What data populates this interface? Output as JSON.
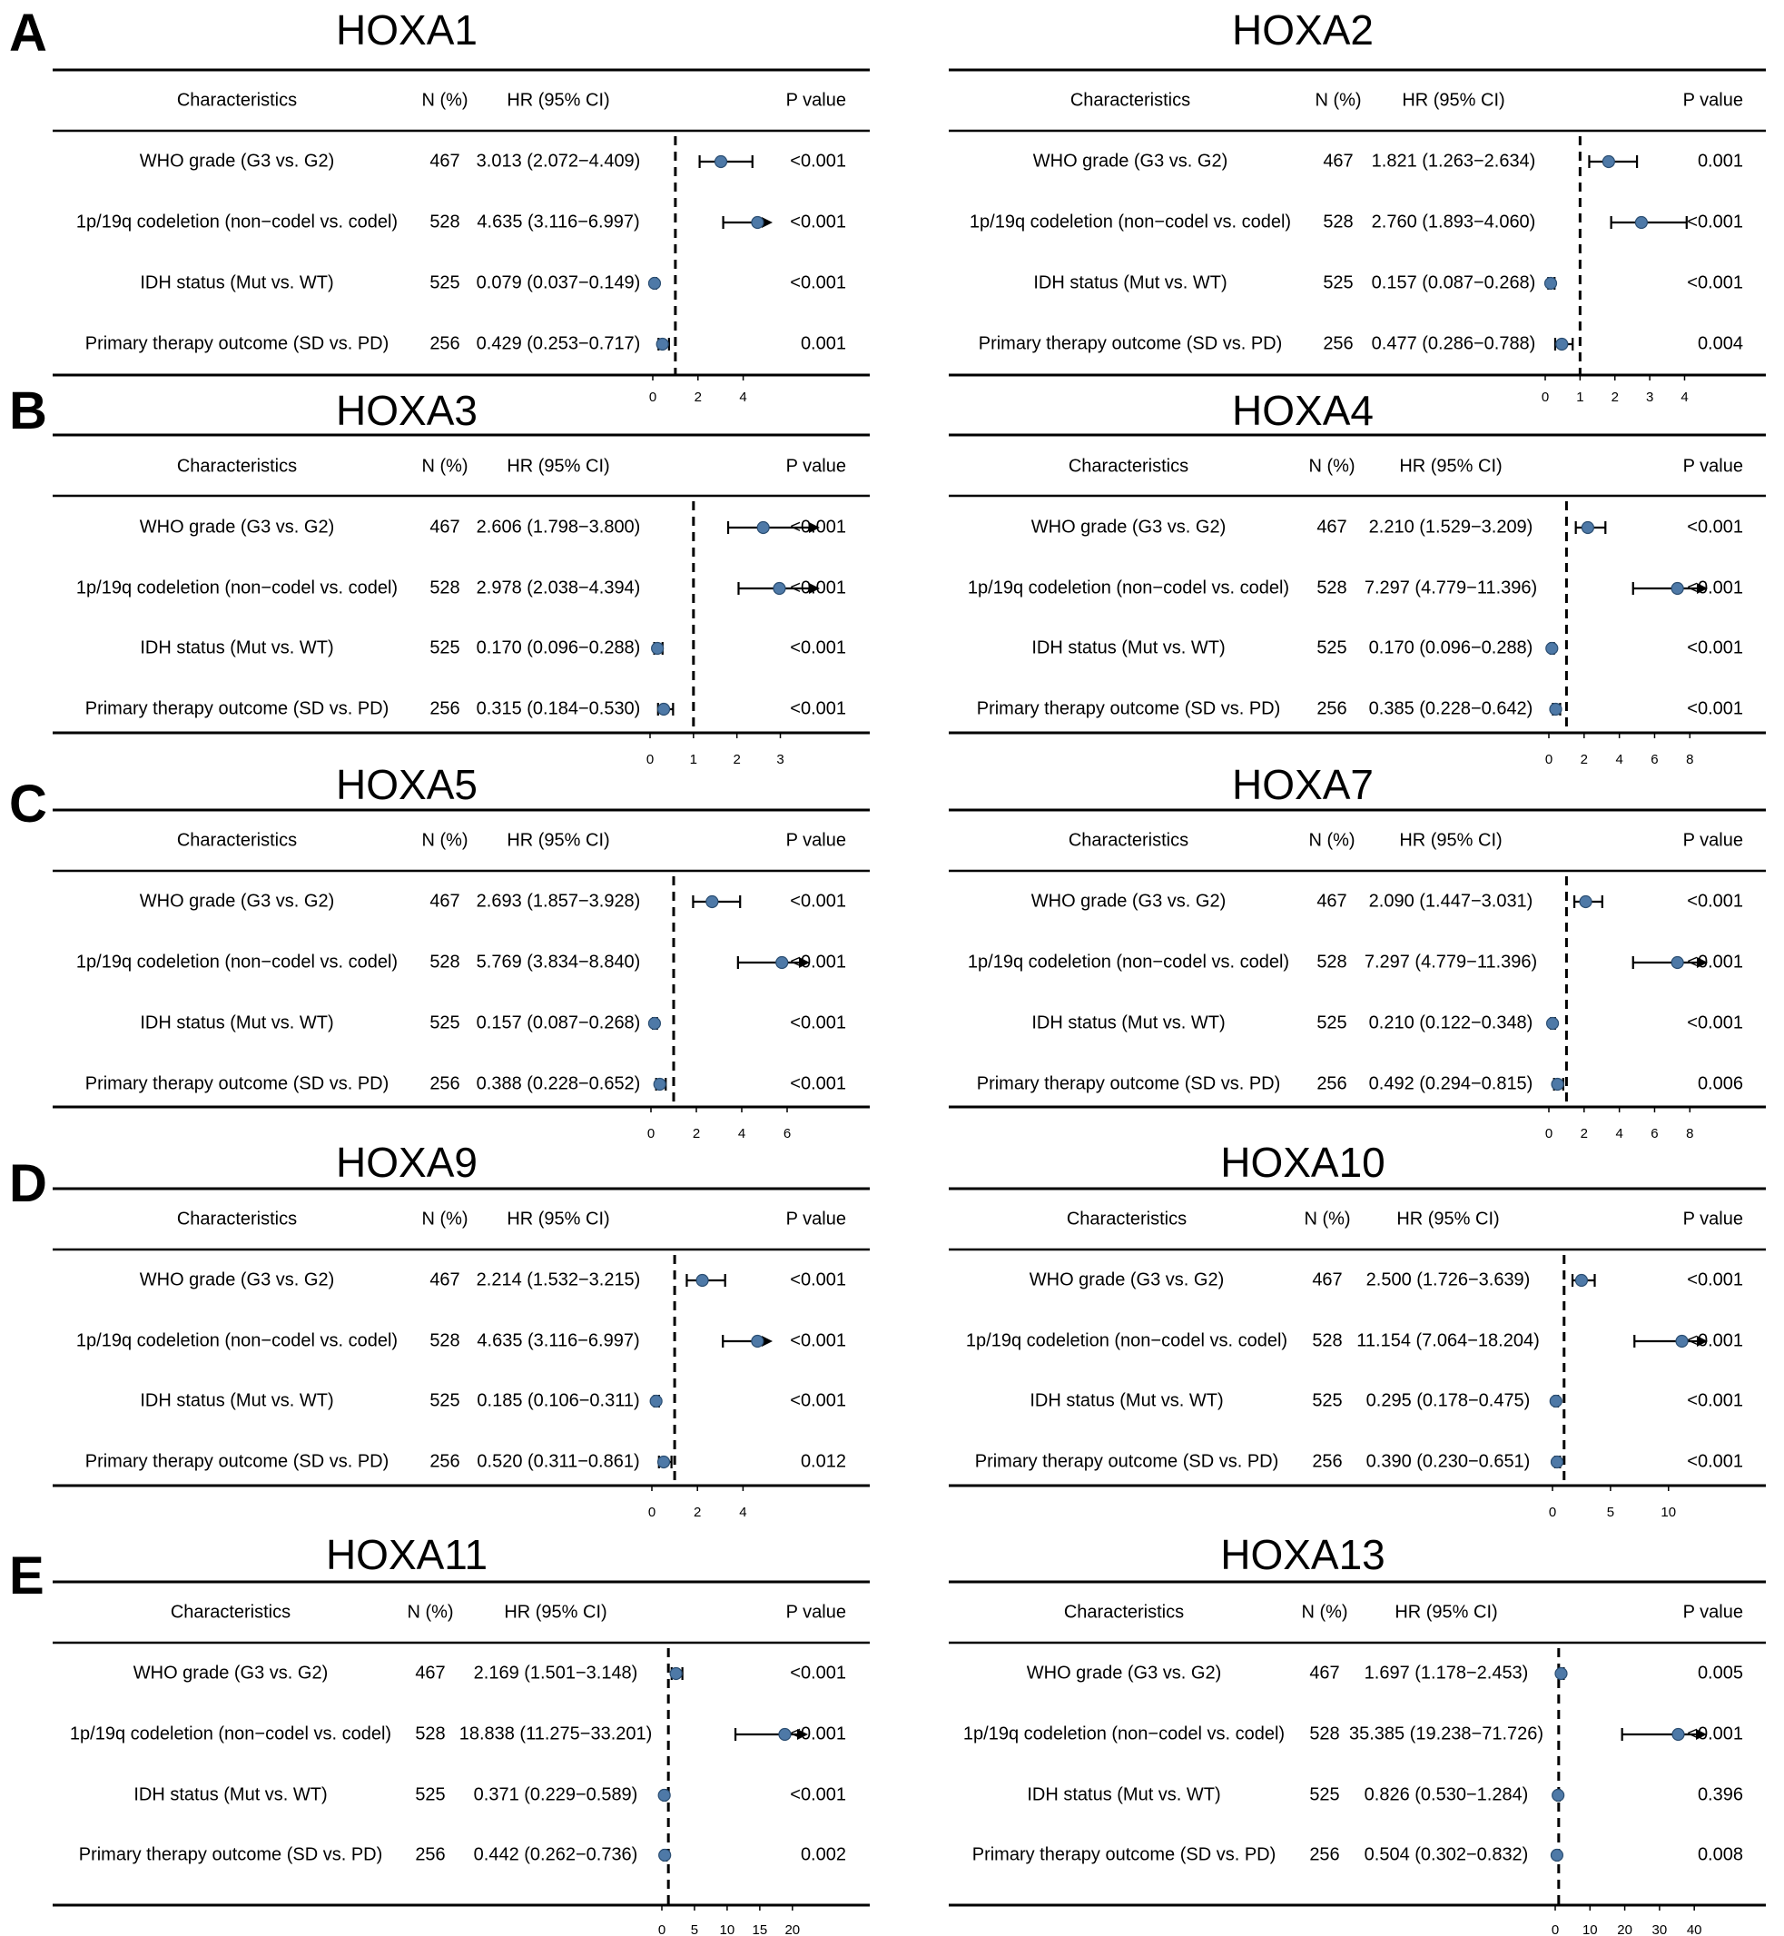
{
  "panel_letters": [
    "A",
    "B",
    "C",
    "D",
    "E"
  ],
  "header": {
    "characteristics": "Characteristics",
    "n": "N (%)",
    "hr": "HR (95% CI)",
    "p": "P value"
  },
  "colors": {
    "point": "#4e79a7",
    "point_outline": "#2b4e72",
    "ref_line": "#000000"
  },
  "chart_data": [
    {
      "type": "forest",
      "title": "HOXA1",
      "ref": 1,
      "xlim": [
        0,
        4.9
      ],
      "ticks": [
        0,
        2,
        4
      ],
      "rows": [
        {
          "label": "WHO grade (G3 vs. G2)",
          "n": "467",
          "hr_text": "3.013 (2.072−4.409)",
          "p": "<0.001",
          "hr": 3.013,
          "lo": 2.072,
          "hi": 4.409,
          "arrow": false
        },
        {
          "label": "1p/19q codeletion (non−codel vs. codel)",
          "n": "528",
          "hr_text": "4.635 (3.116−6.997)",
          "p": "<0.001",
          "hr": 4.635,
          "lo": 3.116,
          "hi": 6.997,
          "arrow": true
        },
        {
          "label": "IDH status (Mut vs. WT)",
          "n": "525",
          "hr_text": "0.079 (0.037−0.149)",
          "p": "<0.001",
          "hr": 0.079,
          "lo": 0.037,
          "hi": 0.149,
          "arrow": false
        },
        {
          "label": "Primary therapy outcome (SD vs. PD)",
          "n": "256",
          "hr_text": "0.429 (0.253−0.717)",
          "p": "0.001",
          "hr": 0.429,
          "lo": 0.253,
          "hi": 0.717,
          "arrow": false
        }
      ]
    },
    {
      "type": "forest",
      "title": "HOXA2",
      "ref": 1,
      "xlim": [
        0,
        4.3
      ],
      "ticks": [
        0,
        1,
        2,
        3,
        4
      ],
      "rows": [
        {
          "label": "WHO grade (G3 vs. G2)",
          "n": "467",
          "hr_text": "1.821 (1.263−2.634)",
          "p": "0.001",
          "hr": 1.821,
          "lo": 1.263,
          "hi": 2.634,
          "arrow": false
        },
        {
          "label": "1p/19q codeletion (non−codel vs. codel)",
          "n": "528",
          "hr_text": "2.760 (1.893−4.060)",
          "p": "<0.001",
          "hr": 2.76,
          "lo": 1.893,
          "hi": 4.06,
          "arrow": false
        },
        {
          "label": "IDH status (Mut vs. WT)",
          "n": "525",
          "hr_text": "0.157 (0.087−0.268)",
          "p": "<0.001",
          "hr": 0.157,
          "lo": 0.087,
          "hi": 0.268,
          "arrow": false
        },
        {
          "label": "Primary therapy outcome (SD vs. PD)",
          "n": "256",
          "hr_text": "0.477 (0.286−0.788)",
          "p": "0.004",
          "hr": 0.477,
          "lo": 0.286,
          "hi": 0.788,
          "arrow": false
        }
      ]
    },
    {
      "type": "forest",
      "title": "HOXA3",
      "ref": 1,
      "xlim": [
        0,
        3.7
      ],
      "ticks": [
        0,
        1,
        2,
        3
      ],
      "rows": [
        {
          "label": "WHO grade (G3 vs. G2)",
          "n": "467",
          "hr_text": "2.606 (1.798−3.800)",
          "p": "<0.001",
          "hr": 2.606,
          "lo": 1.798,
          "hi": 3.8,
          "arrow": true
        },
        {
          "label": "1p/19q codeletion (non−codel vs. codel)",
          "n": "528",
          "hr_text": "2.978 (2.038−4.394)",
          "p": "<0.001",
          "hr": 2.978,
          "lo": 2.038,
          "hi": 4.394,
          "arrow": true
        },
        {
          "label": "IDH status (Mut vs. WT)",
          "n": "525",
          "hr_text": "0.170 (0.096−0.288)",
          "p": "<0.001",
          "hr": 0.17,
          "lo": 0.096,
          "hi": 0.288,
          "arrow": false
        },
        {
          "label": "Primary therapy outcome (SD vs. PD)",
          "n": "256",
          "hr_text": "0.315 (0.184−0.530)",
          "p": "<0.001",
          "hr": 0.315,
          "lo": 0.184,
          "hi": 0.53,
          "arrow": false
        }
      ]
    },
    {
      "type": "forest",
      "title": "HOXA4",
      "ref": 1,
      "xlim": [
        0,
        8.5
      ],
      "ticks": [
        0,
        2,
        4,
        6,
        8
      ],
      "rows": [
        {
          "label": "WHO grade (G3 vs. G2)",
          "n": "467",
          "hr_text": "2.210 (1.529−3.209)",
          "p": "<0.001",
          "hr": 2.21,
          "lo": 1.529,
          "hi": 3.209,
          "arrow": false
        },
        {
          "label": "1p/19q codeletion (non−codel vs. codel)",
          "n": "528",
          "hr_text": "7.297 (4.779−11.396)",
          "p": "<0.001",
          "hr": 7.297,
          "lo": 4.779,
          "hi": 11.396,
          "arrow": true
        },
        {
          "label": "IDH status (Mut vs. WT)",
          "n": "525",
          "hr_text": "0.170 (0.096−0.288)",
          "p": "<0.001",
          "hr": 0.17,
          "lo": 0.096,
          "hi": 0.288,
          "arrow": false
        },
        {
          "label": "Primary therapy outcome (SD vs. PD)",
          "n": "256",
          "hr_text": "0.385 (0.228−0.642)",
          "p": "<0.001",
          "hr": 0.385,
          "lo": 0.228,
          "hi": 0.642,
          "arrow": false
        }
      ]
    },
    {
      "type": "forest",
      "title": "HOXA5",
      "ref": 1,
      "xlim": [
        0,
        6.6
      ],
      "ticks": [
        0,
        2,
        4,
        6
      ],
      "rows": [
        {
          "label": "WHO grade (G3 vs. G2)",
          "n": "467",
          "hr_text": "2.693 (1.857−3.928)",
          "p": "<0.001",
          "hr": 2.693,
          "lo": 1.857,
          "hi": 3.928,
          "arrow": false
        },
        {
          "label": "1p/19q codeletion (non−codel vs. codel)",
          "n": "528",
          "hr_text": "5.769 (3.834−8.840)",
          "p": "<0.001",
          "hr": 5.769,
          "lo": 3.834,
          "hi": 8.84,
          "arrow": true
        },
        {
          "label": "IDH status (Mut vs. WT)",
          "n": "525",
          "hr_text": "0.157 (0.087−0.268)",
          "p": "<0.001",
          "hr": 0.157,
          "lo": 0.087,
          "hi": 0.268,
          "arrow": false
        },
        {
          "label": "Primary therapy outcome (SD vs. PD)",
          "n": "256",
          "hr_text": "0.388 (0.228−0.652)",
          "p": "<0.001",
          "hr": 0.388,
          "lo": 0.228,
          "hi": 0.652,
          "arrow": false
        }
      ]
    },
    {
      "type": "forest",
      "title": "HOXA7",
      "ref": 1,
      "xlim": [
        0,
        8.5
      ],
      "ticks": [
        0,
        2,
        4,
        6,
        8
      ],
      "rows": [
        {
          "label": "WHO grade (G3 vs. G2)",
          "n": "467",
          "hr_text": "2.090 (1.447−3.031)",
          "p": "<0.001",
          "hr": 2.09,
          "lo": 1.447,
          "hi": 3.031,
          "arrow": false
        },
        {
          "label": "1p/19q codeletion (non−codel vs. codel)",
          "n": "528",
          "hr_text": "7.297 (4.779−11.396)",
          "p": "<0.001",
          "hr": 7.297,
          "lo": 4.779,
          "hi": 11.396,
          "arrow": true
        },
        {
          "label": "IDH status (Mut vs. WT)",
          "n": "525",
          "hr_text": "0.210 (0.122−0.348)",
          "p": "<0.001",
          "hr": 0.21,
          "lo": 0.122,
          "hi": 0.348,
          "arrow": false
        },
        {
          "label": "Primary therapy outcome (SD vs. PD)",
          "n": "256",
          "hr_text": "0.492 (0.294−0.815)",
          "p": "0.006",
          "hr": 0.492,
          "lo": 0.294,
          "hi": 0.815,
          "arrow": false
        }
      ]
    },
    {
      "type": "forest",
      "title": "HOXA9",
      "ref": 1,
      "xlim": [
        0,
        4.9
      ],
      "ticks": [
        0,
        2,
        4
      ],
      "rows": [
        {
          "label": "WHO grade (G3 vs. G2)",
          "n": "467",
          "hr_text": "2.214 (1.532−3.215)",
          "p": "<0.001",
          "hr": 2.214,
          "lo": 1.532,
          "hi": 3.215,
          "arrow": false
        },
        {
          "label": "1p/19q codeletion (non−codel vs. codel)",
          "n": "528",
          "hr_text": "4.635 (3.116−6.997)",
          "p": "<0.001",
          "hr": 4.635,
          "lo": 3.116,
          "hi": 6.997,
          "arrow": true
        },
        {
          "label": "IDH status (Mut vs. WT)",
          "n": "525",
          "hr_text": "0.185 (0.106−0.311)",
          "p": "<0.001",
          "hr": 0.185,
          "lo": 0.106,
          "hi": 0.311,
          "arrow": false
        },
        {
          "label": "Primary therapy outcome (SD vs. PD)",
          "n": "256",
          "hr_text": "0.520 (0.311−0.861)",
          "p": "0.012",
          "hr": 0.52,
          "lo": 0.311,
          "hi": 0.861,
          "arrow": false
        }
      ]
    },
    {
      "type": "forest",
      "title": "HOXA10",
      "ref": 1,
      "xlim": [
        0,
        12.6
      ],
      "ticks": [
        0,
        5,
        10
      ],
      "rows": [
        {
          "label": "WHO grade (G3 vs. G2)",
          "n": "467",
          "hr_text": "2.500 (1.726−3.639)",
          "p": "<0.001",
          "hr": 2.5,
          "lo": 1.726,
          "hi": 3.639,
          "arrow": false
        },
        {
          "label": "1p/19q codeletion (non−codel vs. codel)",
          "n": "528",
          "hr_text": "11.154 (7.064−18.204)",
          "p": "<0.001",
          "hr": 11.154,
          "lo": 7.064,
          "hi": 18.204,
          "arrow": true
        },
        {
          "label": "IDH status (Mut vs. WT)",
          "n": "525",
          "hr_text": "0.295 (0.178−0.475)",
          "p": "<0.001",
          "hr": 0.295,
          "lo": 0.178,
          "hi": 0.475,
          "arrow": false
        },
        {
          "label": "Primary therapy outcome (SD vs. PD)",
          "n": "256",
          "hr_text": "0.390 (0.230−0.651)",
          "p": "<0.001",
          "hr": 0.39,
          "lo": 0.23,
          "hi": 0.651,
          "arrow": false
        }
      ]
    },
    {
      "type": "forest",
      "title": "HOXA11",
      "ref": 1,
      "xlim": [
        0,
        21
      ],
      "ticks": [
        0,
        5,
        10,
        15,
        20
      ],
      "rows": [
        {
          "label": "WHO grade (G3 vs. G2)",
          "n": "467",
          "hr_text": "2.169 (1.501−3.148)",
          "p": "<0.001",
          "hr": 2.169,
          "lo": 1.501,
          "hi": 3.148,
          "arrow": false
        },
        {
          "label": "1p/19q codeletion (non−codel vs. codel)",
          "n": "528",
          "hr_text": "18.838 (11.275−33.201)",
          "p": "<0.001",
          "hr": 18.838,
          "lo": 11.275,
          "hi": 33.201,
          "arrow": true
        },
        {
          "label": "IDH status (Mut vs. WT)",
          "n": "525",
          "hr_text": "0.371 (0.229−0.589)",
          "p": "<0.001",
          "hr": 0.371,
          "lo": 0.229,
          "hi": 0.589,
          "arrow": false
        },
        {
          "label": "Primary therapy outcome (SD vs. PD)",
          "n": "256",
          "hr_text": "0.442 (0.262−0.736)",
          "p": "0.002",
          "hr": 0.442,
          "lo": 0.262,
          "hi": 0.736,
          "arrow": false
        }
      ]
    },
    {
      "type": "forest",
      "title": "HOXA13",
      "ref": 1,
      "xlim": [
        0,
        41
      ],
      "ticks": [
        0,
        10,
        20,
        30,
        40
      ],
      "rows": [
        {
          "label": "WHO grade (G3 vs. G2)",
          "n": "467",
          "hr_text": "1.697 (1.178−2.453)",
          "p": "0.005",
          "hr": 1.697,
          "lo": 1.178,
          "hi": 2.453,
          "arrow": false
        },
        {
          "label": "1p/19q codeletion (non−codel vs. codel)",
          "n": "528",
          "hr_text": "35.385 (19.238−71.726)",
          "p": "<0.001",
          "hr": 35.385,
          "lo": 19.238,
          "hi": 71.726,
          "arrow": true
        },
        {
          "label": "IDH status (Mut vs. WT)",
          "n": "525",
          "hr_text": "0.826 (0.530−1.284)",
          "p": "0.396",
          "hr": 0.826,
          "lo": 0.53,
          "hi": 1.284,
          "arrow": false
        },
        {
          "label": "Primary therapy outcome (SD vs. PD)",
          "n": "256",
          "hr_text": "0.504 (0.302−0.832)",
          "p": "0.008",
          "hr": 0.504,
          "lo": 0.302,
          "hi": 0.832,
          "arrow": false
        }
      ]
    }
  ]
}
